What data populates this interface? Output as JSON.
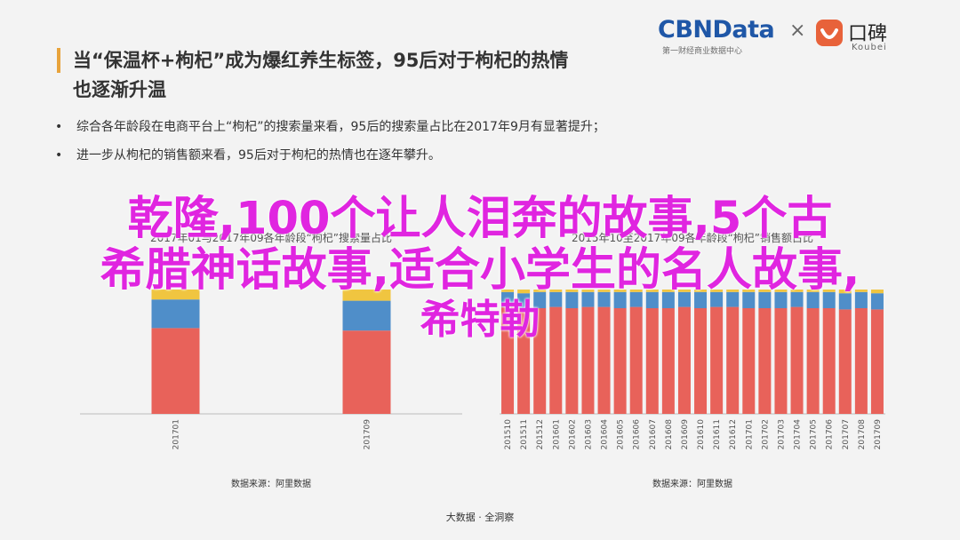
{
  "brand": {
    "cbn_name": "CBNData",
    "cbn_sub": "第一财经商业数据中心",
    "times": "×",
    "koubei_name": "口碑",
    "koubei_sub": "Koubei",
    "koubei_color": "#e8623a",
    "cbn_color": "#1f57a7",
    "koubei_icon": "koubei-smile-logo"
  },
  "heading": {
    "line1": "当“保温杯+枸杞”成为爆红养生标签，95后对于枸杞的热情",
    "line2": "也逐渐升温"
  },
  "bullets": [
    "综合各年龄段在电商平台上“枸杞”的搜索量来看，95后的搜索量占比在2017年9月有显著提升；",
    "进一步从枸杞的销售额来看，95后对于枸杞的热情也在逐年攀升。"
  ],
  "chart_data": [
    {
      "type": "bar",
      "title": "2017年01与2017年09各年龄段“枸杞”搜索量占比",
      "categories": [
        "201701",
        "201709"
      ],
      "series": [
        {
          "color": "#e8625a",
          "values": [
            69,
            67
          ]
        },
        {
          "color": "#4f8ec9",
          "values": [
            23,
            24
          ]
        },
        {
          "color": "#f0c540",
          "values": [
            8,
            9
          ]
        }
      ],
      "ylim": [
        0,
        100
      ],
      "source": "数据来源：阿里数据"
    },
    {
      "type": "bar",
      "title": "2015年10至2017年09各年龄段“枸杞”销售额占比",
      "categories": [
        "201510",
        "201511",
        "201512",
        "201601",
        "201602",
        "201603",
        "201604",
        "201605",
        "201606",
        "201607",
        "201608",
        "201609",
        "201610",
        "201611",
        "201612",
        "201701",
        "201702",
        "201703",
        "201704",
        "201705",
        "201706",
        "201707",
        "201708",
        "201709"
      ],
      "series": [
        {
          "color": "#e8625a",
          "values": [
            86,
            85,
            85,
            86,
            85,
            86,
            86,
            85,
            86,
            85,
            85,
            86,
            85,
            86,
            86,
            85,
            85,
            85,
            86,
            85,
            85,
            84,
            85,
            84
          ]
        },
        {
          "color": "#4f8ec9",
          "values": [
            12,
            12,
            13,
            12,
            13,
            12,
            12,
            13,
            12,
            13,
            13,
            12,
            13,
            12,
            12,
            13,
            13,
            13,
            12,
            13,
            13,
            13,
            13,
            13
          ]
        },
        {
          "color": "#f0c540",
          "values": [
            2,
            3,
            2,
            2,
            2,
            2,
            2,
            2,
            2,
            2,
            2,
            2,
            2,
            2,
            2,
            2,
            2,
            2,
            2,
            2,
            2,
            3,
            2,
            3
          ]
        }
      ],
      "ylim": [
        0,
        100
      ],
      "source": "数据来源：阿里数据"
    }
  ],
  "overlay": {
    "line1": "乾隆,100个让人泪奔的故事,5个古",
    "line2": "希腊神话故事,适合小学生的名人故事,",
    "line3": "希特勒"
  },
  "footer": "大数据 · 全洞察"
}
